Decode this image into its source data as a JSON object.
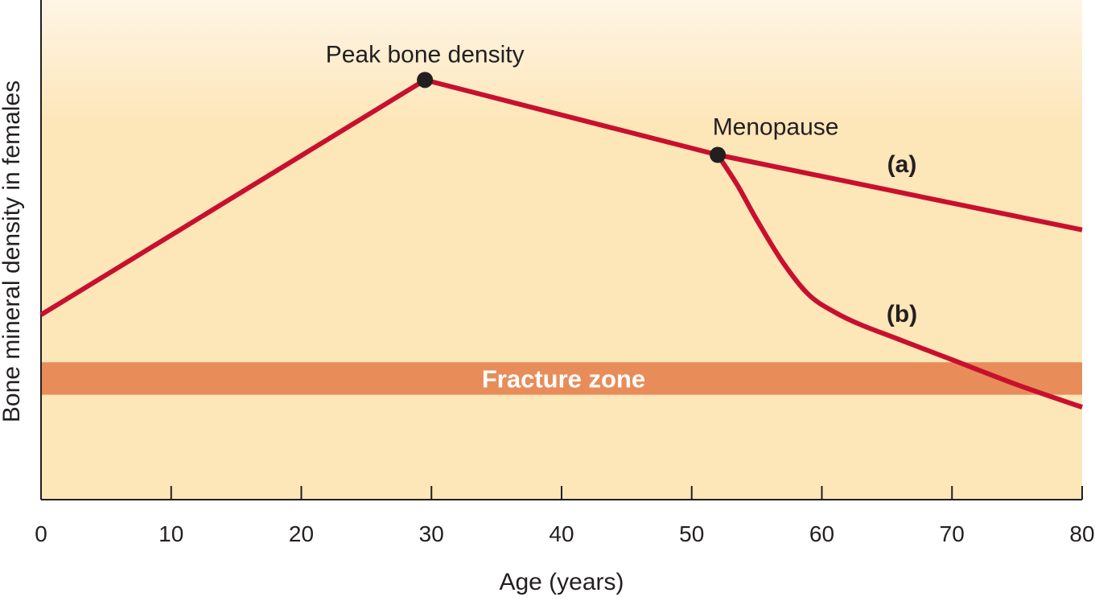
{
  "chart_data": {
    "type": "line",
    "title": "",
    "xlabel": "Age (years)",
    "ylabel": "Bone mineral density in females",
    "xlim": [
      0,
      80
    ],
    "ylim": [
      0,
      100
    ],
    "x_ticks": [
      0,
      10,
      20,
      30,
      40,
      50,
      60,
      70,
      80
    ],
    "y_ticks": [],
    "grid": false,
    "series": [
      {
        "name": "(a)",
        "color": "#c8102e",
        "points": [
          [
            0,
            37
          ],
          [
            29.5,
            84
          ],
          [
            52,
            69
          ],
          [
            80,
            54
          ]
        ]
      },
      {
        "name": "(b)",
        "color": "#c8102e",
        "points": [
          [
            52,
            69
          ],
          [
            53.5,
            63
          ],
          [
            55,
            56
          ],
          [
            57,
            47.5
          ],
          [
            59,
            41
          ],
          [
            61,
            37.5
          ],
          [
            63,
            35
          ],
          [
            66,
            32
          ],
          [
            70,
            28
          ],
          [
            75,
            23
          ],
          [
            80,
            18.5
          ]
        ]
      }
    ],
    "bands": [
      {
        "label": "Fracture zone",
        "y_range": [
          21,
          27.5
        ],
        "color": "#e88c5a"
      }
    ],
    "annotations": [
      {
        "text": "Peak bone density",
        "x": 29.5,
        "y": 84
      },
      {
        "text": "Menopause",
        "x": 52,
        "y": 69
      }
    ],
    "colors": {
      "background_top": "#fef5e6",
      "background_mid": "#fde6b8",
      "axis": "#231f20",
      "marker": "#231f20"
    }
  }
}
